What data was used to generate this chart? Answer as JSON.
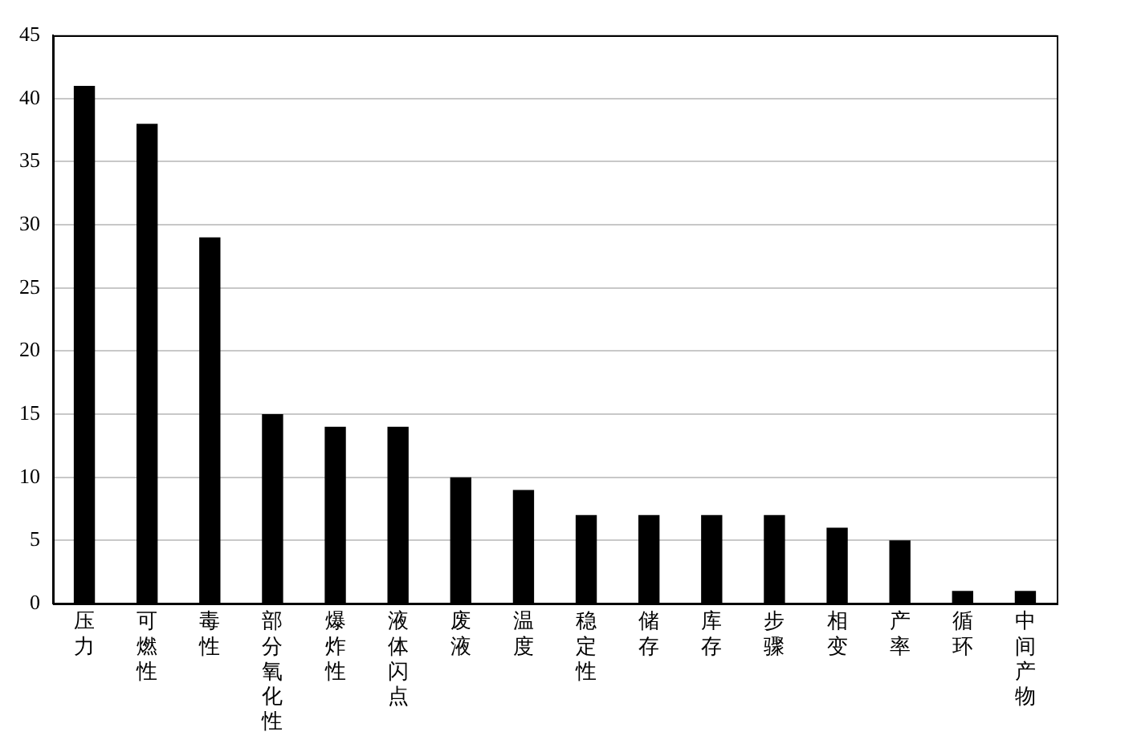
{
  "chart_data": {
    "type": "bar",
    "categories": [
      "压力",
      "可燃性",
      "毒性",
      "部分氧化性",
      "爆炸性",
      "液体闪点",
      "废液",
      "温度",
      "稳定性",
      "储存",
      "库存",
      "步骤",
      "相变",
      "产率",
      "循环",
      "中间产物"
    ],
    "values": [
      41,
      38,
      29,
      15,
      14,
      14,
      10,
      9,
      7,
      7,
      7,
      7,
      6,
      5,
      1,
      1
    ],
    "color": "#000000",
    "ylim": [
      0,
      45
    ],
    "yticks": [
      0,
      5,
      10,
      15,
      20,
      25,
      30,
      35,
      40,
      45
    ],
    "grid": "y",
    "legend": false
  }
}
